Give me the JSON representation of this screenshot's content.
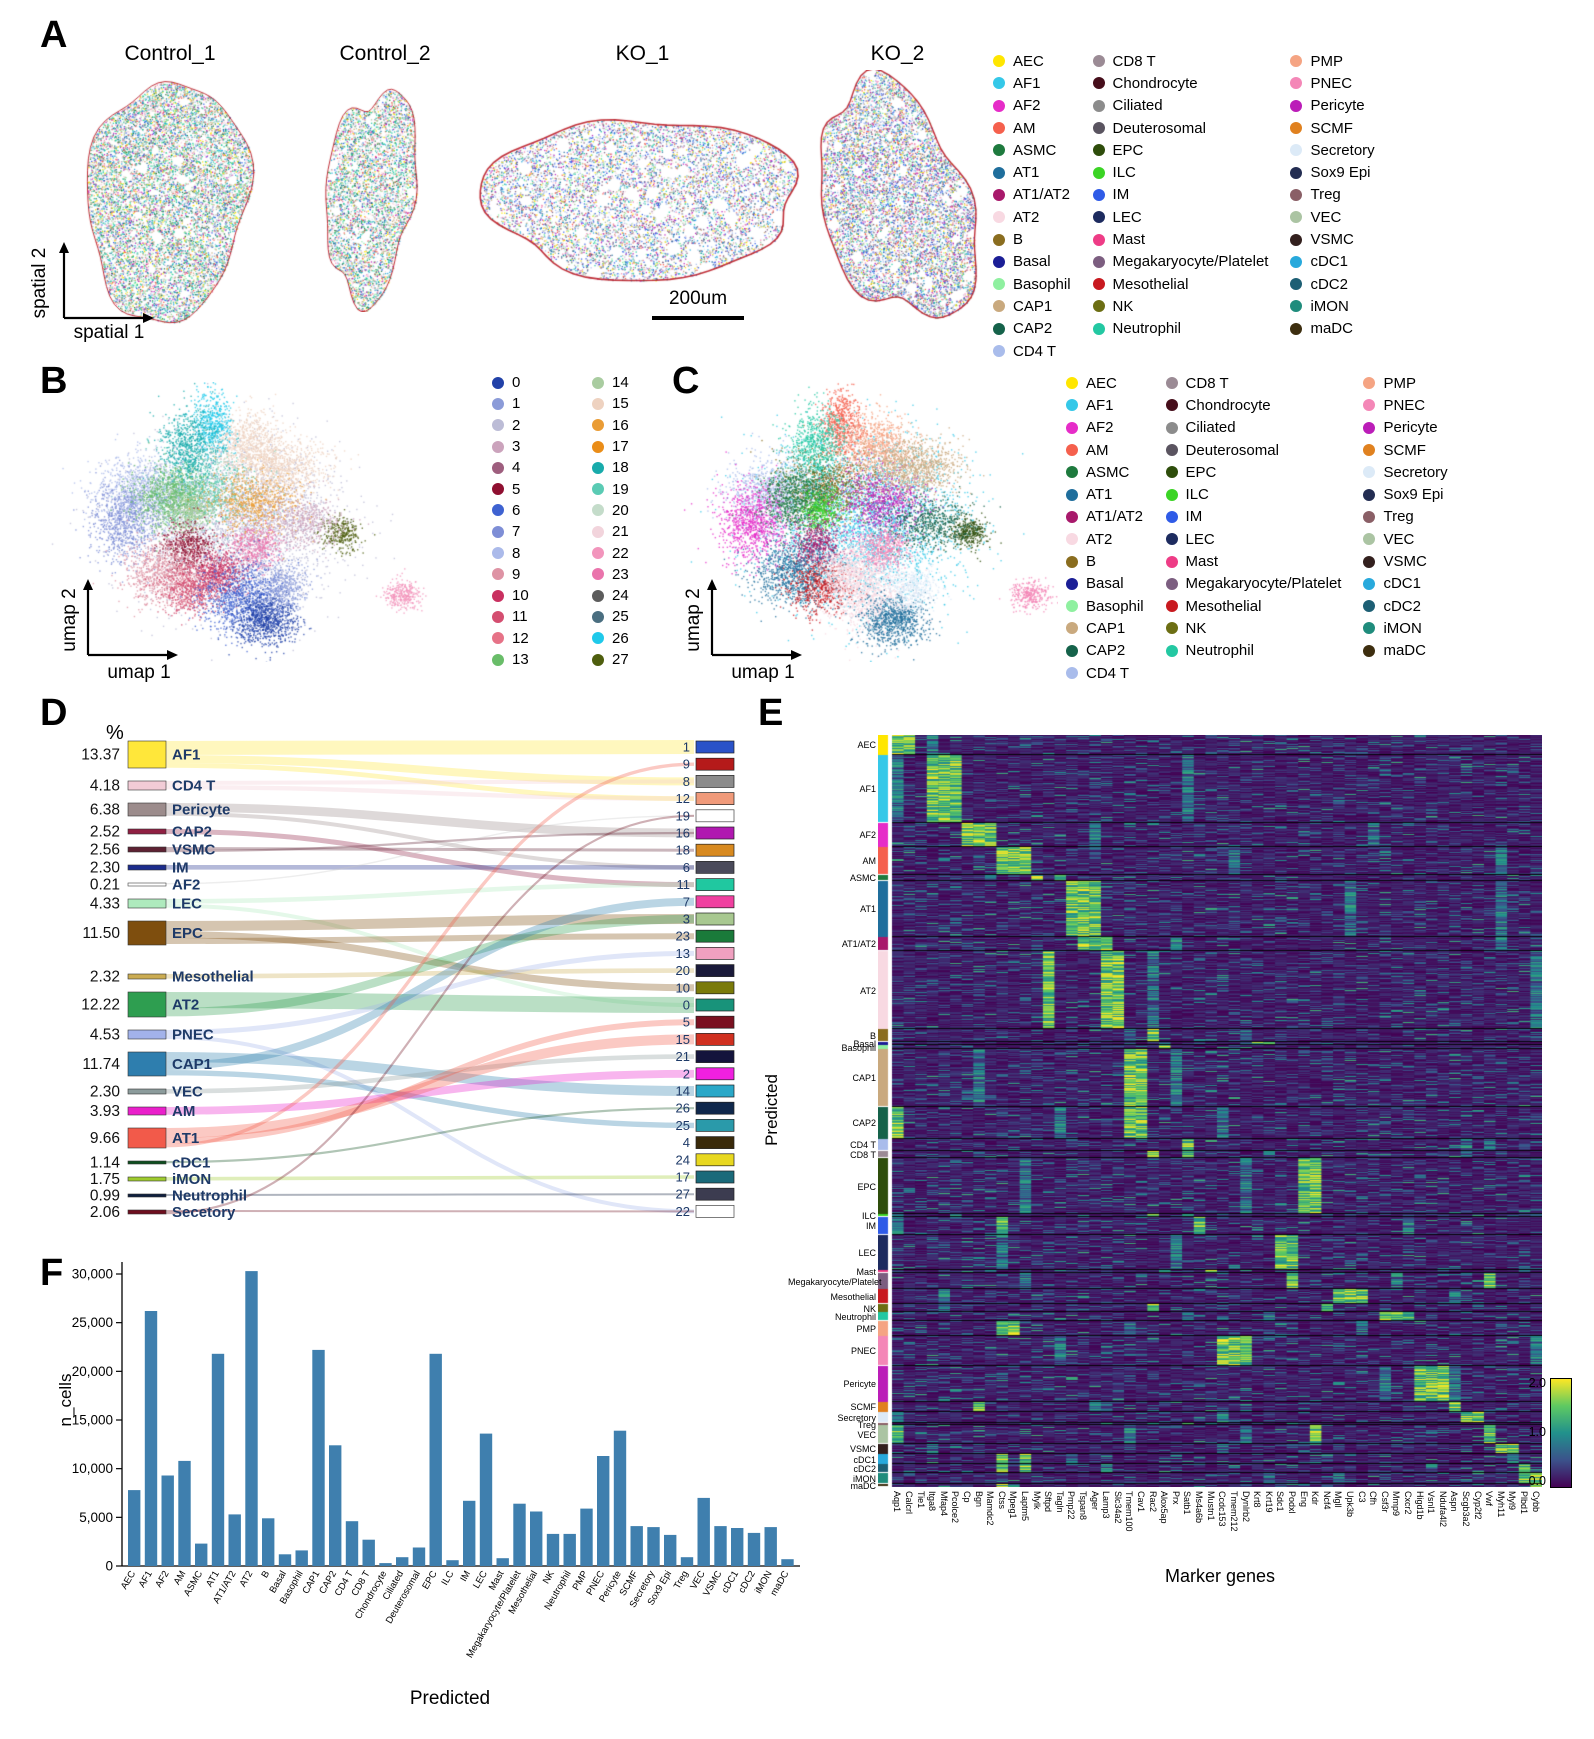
{
  "figure": {
    "panel_labels": {
      "a": "A",
      "b": "B",
      "c": "C",
      "d": "D",
      "e": "E",
      "f": "F"
    }
  },
  "panel_a": {
    "samples": [
      "Control_1",
      "Control_2",
      "KO_1",
      "KO_2"
    ],
    "x_axis": "spatial 1",
    "y_axis": "spatial 2",
    "scale_bar": "200um"
  },
  "panel_b": {
    "x_axis": "umap 1",
    "y_axis": "umap 2"
  },
  "panel_c": {
    "x_axis": "umap 1",
    "y_axis": "umap 2"
  },
  "cell_types": [
    {
      "name": "AEC",
      "color": "#FFE600"
    },
    {
      "name": "AF1",
      "color": "#35C8E8"
    },
    {
      "name": "AF2",
      "color": "#E62CC8"
    },
    {
      "name": "AM",
      "color": "#F5604D"
    },
    {
      "name": "ASMC",
      "color": "#1E7A3E"
    },
    {
      "name": "AT1",
      "color": "#1F6E9C"
    },
    {
      "name": "AT1/AT2",
      "color": "#A8196B"
    },
    {
      "name": "AT2",
      "color": "#F8D9E2"
    },
    {
      "name": "B",
      "color": "#8A6D1F"
    },
    {
      "name": "Basal",
      "color": "#1B1E96"
    },
    {
      "name": "Basophil",
      "color": "#8FF0A0"
    },
    {
      "name": "CAP1",
      "color": "#C9A97E"
    },
    {
      "name": "CAP2",
      "color": "#15624A"
    },
    {
      "name": "CD4 T",
      "color": "#A9BCEB"
    },
    {
      "name": "CD8 T",
      "color": "#9B8B95"
    },
    {
      "name": "Chondrocyte",
      "color": "#460E1B"
    },
    {
      "name": "Ciliated",
      "color": "#8C8C8C"
    },
    {
      "name": "Deuterosomal",
      "color": "#5A5460"
    },
    {
      "name": "EPC",
      "color": "#2E4D0B"
    },
    {
      "name": "ILC",
      "color": "#3BD425"
    },
    {
      "name": "IM",
      "color": "#2F5BE7"
    },
    {
      "name": "LEC",
      "color": "#1D2B5F"
    },
    {
      "name": "Mast",
      "color": "#EE3C86"
    },
    {
      "name": "Megakaryocyte/Platelet",
      "color": "#7C5E80"
    },
    {
      "name": "Mesothelial",
      "color": "#C8191F"
    },
    {
      "name": "NK",
      "color": "#6C6E13"
    },
    {
      "name": "Neutrophil",
      "color": "#23C8A2"
    },
    {
      "name": "PMP",
      "color": "#F5A483"
    },
    {
      "name": "PNEC",
      "color": "#F487B7"
    },
    {
      "name": "Pericyte",
      "color": "#BB1DB8"
    },
    {
      "name": "SCMF",
      "color": "#E0811F"
    },
    {
      "name": "Secretory",
      "color": "#DCEAF7"
    },
    {
      "name": "Sox9 Epi",
      "color": "#232D52"
    },
    {
      "name": "Treg",
      "color": "#8A5F66"
    },
    {
      "name": "VEC",
      "color": "#ABC4A3"
    },
    {
      "name": "VSMC",
      "color": "#33201E"
    },
    {
      "name": "cDC1",
      "color": "#28A9DC"
    },
    {
      "name": "cDC2",
      "color": "#1D5F74"
    },
    {
      "name": "iMON",
      "color": "#1F8C7C"
    },
    {
      "name": "maDC",
      "color": "#3D2E0F"
    }
  ],
  "clusters": [
    {
      "id": "0",
      "color": "#2141A8"
    },
    {
      "id": "1",
      "color": "#8B9BD8"
    },
    {
      "id": "2",
      "color": "#BCBCD6"
    },
    {
      "id": "3",
      "color": "#CBA3BC"
    },
    {
      "id": "4",
      "color": "#9E5E7E"
    },
    {
      "id": "5",
      "color": "#8F0F30"
    },
    {
      "id": "6",
      "color": "#3E62D1"
    },
    {
      "id": "7",
      "color": "#7E8ED6"
    },
    {
      "id": "8",
      "color": "#ABBAEA"
    },
    {
      "id": "9",
      "color": "#DE93A4"
    },
    {
      "id": "10",
      "color": "#C93060"
    },
    {
      "id": "11",
      "color": "#D44E70"
    },
    {
      "id": "12",
      "color": "#E67287"
    },
    {
      "id": "13",
      "color": "#69BD69"
    },
    {
      "id": "14",
      "color": "#A9CCA0"
    },
    {
      "id": "15",
      "color": "#EED2C0"
    },
    {
      "id": "16",
      "color": "#EA9C35"
    },
    {
      "id": "17",
      "color": "#EA8D18"
    },
    {
      "id": "18",
      "color": "#18ABAB"
    },
    {
      "id": "19",
      "color": "#5ACBB4"
    },
    {
      "id": "20",
      "color": "#C4DCCA"
    },
    {
      "id": "21",
      "color": "#F2D4DC"
    },
    {
      "id": "22",
      "color": "#F295BC"
    },
    {
      "id": "23",
      "color": "#EA74AC"
    },
    {
      "id": "24",
      "color": "#5C5C5C"
    },
    {
      "id": "25",
      "color": "#4A6E80"
    },
    {
      "id": "26",
      "color": "#1FC9EA"
    },
    {
      "id": "27",
      "color": "#4E5E0E"
    }
  ],
  "chart_data": [
    {
      "id": "sankey_d",
      "type": "sankey",
      "title": "%",
      "left": [
        {
          "name": "AF1",
          "pct": 13.37,
          "color": "#FFE73A"
        },
        {
          "name": "CD4 T",
          "pct": 4.18,
          "color": "#F2CBD6"
        },
        {
          "name": "Pericyte",
          "pct": 6.38,
          "color": "#9C8C8C"
        },
        {
          "name": "CAP2",
          "pct": 2.52,
          "color": "#8F1F42"
        },
        {
          "name": "VSMC",
          "pct": 2.56,
          "color": "#5E2233"
        },
        {
          "name": "IM",
          "pct": 2.3,
          "color": "#1C2C8C"
        },
        {
          "name": "AF2",
          "pct": 0.21,
          "color": "#FFFFFF"
        },
        {
          "name": "LEC",
          "pct": 4.33,
          "color": "#AEEABD"
        },
        {
          "name": "EPC",
          "pct": 11.5,
          "color": "#7E4E0E"
        },
        {
          "name": "Mesothelial",
          "pct": 2.32,
          "color": "#CBAC52"
        },
        {
          "name": "AT2",
          "pct": 12.22,
          "color": "#2E9E50"
        },
        {
          "name": "PNEC",
          "pct": 4.53,
          "color": "#A2B2EA"
        },
        {
          "name": "CAP1",
          "pct": 11.74,
          "color": "#2E7EAE"
        },
        {
          "name": "VEC",
          "pct": 2.3,
          "color": "#8C9C9C"
        },
        {
          "name": "AM",
          "pct": 3.93,
          "color": "#EA1FCB"
        },
        {
          "name": "AT1",
          "pct": 9.66,
          "color": "#F25A4A"
        },
        {
          "name": "cDC1",
          "pct": 1.14,
          "color": "#0E4E1E"
        },
        {
          "name": "iMON",
          "pct": 1.75,
          "color": "#9ECB2E"
        },
        {
          "name": "Neutrophil",
          "pct": 0.99,
          "color": "#0E1E3E"
        },
        {
          "name": "Secetory",
          "pct": 2.06,
          "color": "#6E0E1E"
        }
      ],
      "right": [
        {
          "id": "1",
          "color": "#2A52C8"
        },
        {
          "id": "9",
          "color": "#B51A1A"
        },
        {
          "id": "8",
          "color": "#8C8C8C"
        },
        {
          "id": "12",
          "color": "#F09A7A"
        },
        {
          "id": "19",
          "color": "#FFFFFF"
        },
        {
          "id": "16",
          "color": "#B018B0"
        },
        {
          "id": "18",
          "color": "#D88A20"
        },
        {
          "id": "6",
          "color": "#4A4A5A"
        },
        {
          "id": "11",
          "color": "#20C8A0"
        },
        {
          "id": "7",
          "color": "#F040A0"
        },
        {
          "id": "3",
          "color": "#A8C890"
        },
        {
          "id": "23",
          "color": "#1A7A3A"
        },
        {
          "id": "13",
          "color": "#F0A0C0"
        },
        {
          "id": "20",
          "color": "#1A1A3A"
        },
        {
          "id": "10",
          "color": "#7A7A0A"
        },
        {
          "id": "0",
          "color": "#18937A"
        },
        {
          "id": "5",
          "color": "#7A1020"
        },
        {
          "id": "15",
          "color": "#D03020"
        },
        {
          "id": "21",
          "color": "#14143C"
        },
        {
          "id": "2",
          "color": "#F020E0"
        },
        {
          "id": "14",
          "color": "#2AA8C8"
        },
        {
          "id": "26",
          "color": "#10284C"
        },
        {
          "id": "25",
          "color": "#2A9AAA"
        },
        {
          "id": "4",
          "color": "#3A2A0A"
        },
        {
          "id": "24",
          "color": "#E8D820"
        },
        {
          "id": "17",
          "color": "#1A6A7A"
        },
        {
          "id": "27",
          "color": "#3C3C50"
        },
        {
          "id": "22",
          "color": "#FFFFFF"
        }
      ],
      "flows": [
        [
          "AF1",
          "1",
          7.0
        ],
        [
          "AF1",
          "8",
          4.0
        ],
        [
          "AF1",
          "12",
          2.4
        ],
        [
          "CD4 T",
          "8",
          2.0
        ],
        [
          "CD4 T",
          "12",
          2.2
        ],
        [
          "Pericyte",
          "16",
          4.4
        ],
        [
          "Pericyte",
          "6",
          2.0
        ],
        [
          "CAP2",
          "11",
          2.5
        ],
        [
          "VSMC",
          "18",
          1.5
        ],
        [
          "VSMC",
          "16",
          1.1
        ],
        [
          "IM",
          "6",
          2.3
        ],
        [
          "AF2",
          "19",
          0.2
        ],
        [
          "LEC",
          "11",
          2.3
        ],
        [
          "LEC",
          "0",
          2.0
        ],
        [
          "EPC",
          "3",
          5.0
        ],
        [
          "EPC",
          "10",
          3.5
        ],
        [
          "EPC",
          "23",
          3.0
        ],
        [
          "Mesothelial",
          "20",
          2.3
        ],
        [
          "AT2",
          "0",
          8.0
        ],
        [
          "AT2",
          "3",
          4.2
        ],
        [
          "PNEC",
          "13",
          2.5
        ],
        [
          "PNEC",
          "22",
          2.0
        ],
        [
          "CAP1",
          "14",
          5.0
        ],
        [
          "CAP1",
          "7",
          4.0
        ],
        [
          "CAP1",
          "25",
          2.7
        ],
        [
          "VEC",
          "21",
          2.3
        ],
        [
          "AM",
          "2",
          3.9
        ],
        [
          "AT1",
          "15",
          5.0
        ],
        [
          "AT1",
          "5",
          3.0
        ],
        [
          "AT1",
          "9",
          1.7
        ],
        [
          "cDC1",
          "26",
          1.1
        ],
        [
          "iMON",
          "17",
          1.8
        ],
        [
          "Neutrophil",
          "27",
          1.0
        ],
        [
          "Secetory",
          "22",
          1.0
        ],
        [
          "Secetory",
          "19",
          1.1
        ]
      ]
    },
    {
      "id": "heatmap_e",
      "type": "heatmap",
      "ylabel": "Predicted",
      "xlabel": "Marker genes",
      "rows": [
        "AEC",
        "AF1",
        "AF2",
        "AM",
        "ASMC",
        "AT1",
        "AT1/AT2",
        "AT2",
        "B",
        "Basal",
        "Basophil",
        "CAP1",
        "CAP2",
        "CD4 T",
        "CD8 T",
        "EPC",
        "ILC",
        "IM",
        "LEC",
        "Mast",
        "Megakaryocyte/Platelet",
        "Mesothelial",
        "NK",
        "Neutrophil",
        "PMP",
        "PNEC",
        "Pericyte",
        "SCMF",
        "Secretory",
        "Treg",
        "VEC",
        "VSMC",
        "cDC1",
        "cDC2",
        "iMON",
        "maDC"
      ],
      "genes": [
        "Aqp1",
        "Calcrl",
        "Tie1",
        "Itga8",
        "Mfap4",
        "Pcolce2",
        "Cp",
        "Bgn",
        "Mamdc2",
        "Ctss",
        "Mpeg1",
        "Laptm5",
        "Mylk",
        "Sftpd",
        "Tagln",
        "Pmp22",
        "Tspan8",
        "Ager",
        "Lamp3",
        "Slc34a2",
        "Tmem100",
        "Cav1",
        "Rac2",
        "Alox5ap",
        "Prx",
        "Satb1",
        "Ms4a6b",
        "Mustn1",
        "Ccdc153",
        "Tmem212",
        "Dynlrb2",
        "Krt8",
        "Krt19",
        "Sdc1",
        "Podxl",
        "Eng",
        "Kdr",
        "Ncf4",
        "Mgll",
        "Upk3b",
        "C3",
        "Cfh",
        "Csf3r",
        "Mmp9",
        "Cxcr2",
        "Higd1b",
        "Vsnl1",
        "Ndufa4l2",
        "Aspn",
        "Scgb3a2",
        "Cyp2f2",
        "Vwf",
        "Myh11",
        "Myl9",
        "Plbd1",
        "Cybb"
      ],
      "marker_columns": {
        "AEC": [
          0,
          1
        ],
        "AF1": [
          3,
          4,
          5
        ],
        "AF2": [
          6,
          7,
          8
        ],
        "AM": [
          9,
          10,
          11
        ],
        "ASMC": [
          12,
          14
        ],
        "AT1": [
          15,
          16,
          17
        ],
        "AT1/AT2": [
          16,
          17,
          18
        ],
        "AT2": [
          13,
          18,
          19
        ],
        "B": [
          22
        ],
        "Basal": [
          31,
          32
        ],
        "Basophil": [
          23
        ],
        "CAP1": [
          20,
          21
        ],
        "CAP2": [
          0,
          20,
          21
        ],
        "CD4 T": [
          25
        ],
        "CD8 T": [
          22,
          25
        ],
        "EPC": [
          35,
          36
        ],
        "ILC": [
          22,
          25
        ],
        "IM": [
          9,
          26
        ],
        "LEC": [
          33,
          34
        ],
        "Mast": [
          23,
          27
        ],
        "Megakaryocyte/Platelet": [
          34,
          51
        ],
        "Mesothelial": [
          38,
          39,
          40
        ],
        "NK": [
          22,
          37
        ],
        "Neutrophil": [
          42,
          43,
          44
        ],
        "PMP": [
          9,
          10
        ],
        "PNEC": [
          28,
          29,
          30
        ],
        "Pericyte": [
          45,
          46,
          47
        ],
        "SCMF": [
          7,
          48
        ],
        "Secretory": [
          49,
          50
        ],
        "Treg": [
          22,
          25
        ],
        "VEC": [
          0,
          36,
          51
        ],
        "VSMC": [
          52,
          53
        ],
        "cDC1": [
          9,
          11
        ],
        "cDC2": [
          9,
          11,
          54
        ],
        "iMON": [
          54,
          55
        ],
        "maDC": [
          9,
          55
        ]
      },
      "colorbar_ticks": [
        "2.0",
        "1.0",
        "0.0"
      ],
      "vmin": 0.0,
      "vmax": 2.0
    },
    {
      "id": "bars_f",
      "type": "bar",
      "ylabel": "n_cells",
      "xlabel": "Predicted",
      "bar_color": "#3F7FAE",
      "yticks": [
        0,
        5000,
        10000,
        15000,
        20000,
        25000,
        30000
      ],
      "categories": [
        "AEC",
        "AF1",
        "AF2",
        "AM",
        "ASMC",
        "AT1",
        "AT1/AT2",
        "AT2",
        "B",
        "Basal",
        "Basophil",
        "CAP1",
        "CAP2",
        "CD4 T",
        "CD8 T",
        "Chondrocyte",
        "Ciliated",
        "Deuterosomal",
        "EPC",
        "ILC",
        "IM",
        "LEC",
        "Mast",
        "Megakaryocyte/Platelet",
        "Mesothelial",
        "NK",
        "Neutrophil",
        "PMP",
        "PNEC",
        "Pericyte",
        "SCMF",
        "Secretory",
        "Sox9 Epi",
        "Treg",
        "VEC",
        "VSMC",
        "cDC1",
        "cDC2",
        "iMON",
        "maDC"
      ],
      "values": [
        7800,
        26200,
        9300,
        10800,
        2300,
        21800,
        5300,
        30300,
        4900,
        1200,
        1600,
        22200,
        12400,
        4600,
        2700,
        300,
        900,
        1900,
        21800,
        600,
        6700,
        13600,
        800,
        6400,
        5600,
        3300,
        3300,
        5900,
        11300,
        13900,
        4100,
        4000,
        3200,
        900,
        7000,
        4100,
        3900,
        3400,
        4000,
        700
      ]
    }
  ]
}
